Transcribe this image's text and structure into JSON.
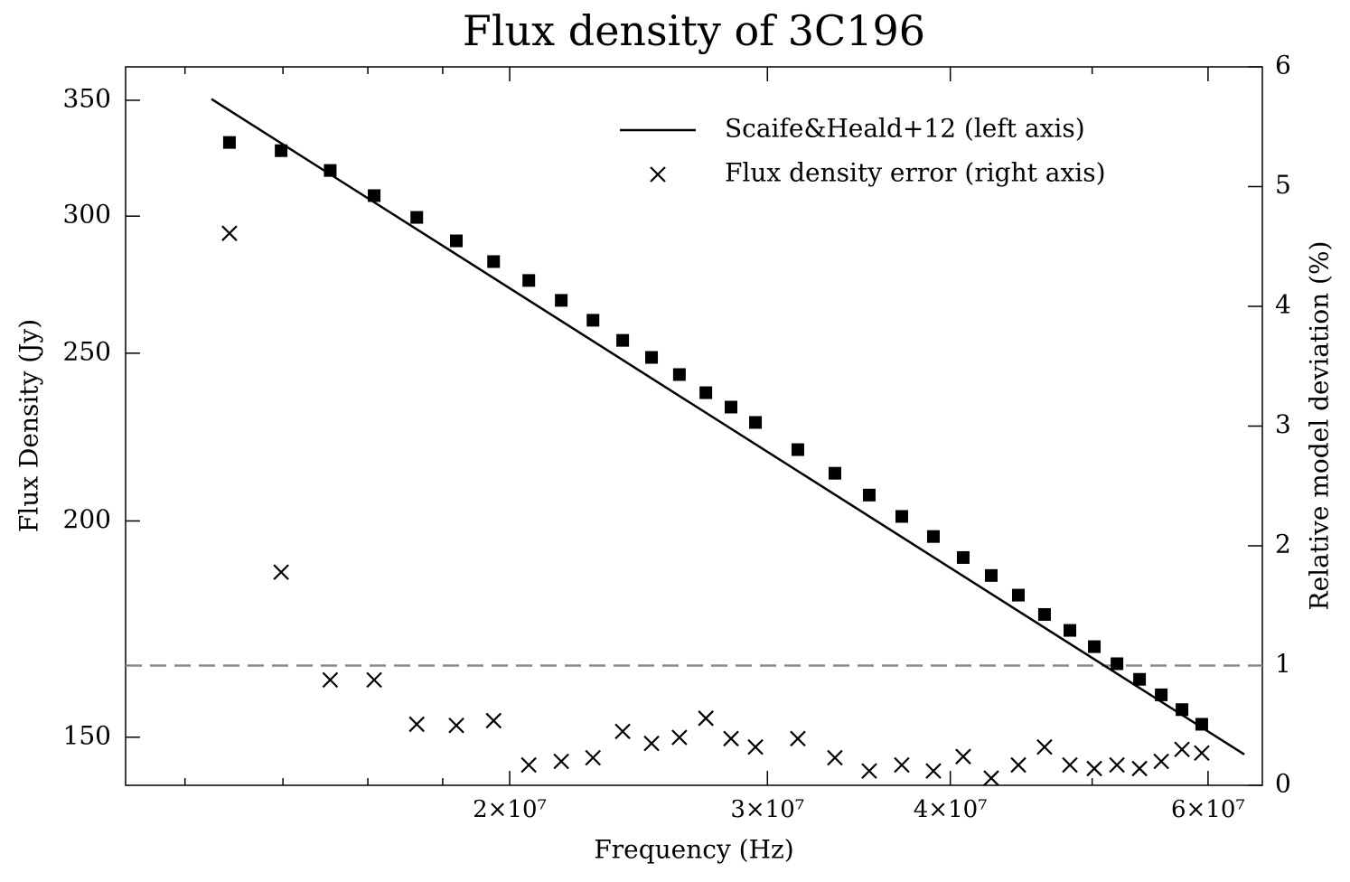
{
  "chart_data": {
    "type": "line",
    "title": "Flux density of 3C196",
    "xlabel": "Frequency (Hz)",
    "ylabel": "Flux Density (Jy)",
    "y2label": "Relative model deviation (%)",
    "xscale": "log",
    "yscale": "log",
    "xlim": [
      10930000,
      65350000
    ],
    "ylim": [
      140.7,
      365.9
    ],
    "y2lim": [
      0,
      6
    ],
    "xticks": [
      {
        "value": 20000000,
        "label": "2×10⁷"
      },
      {
        "value": 30000000,
        "label": "3×10⁷"
      },
      {
        "value": 40000000,
        "label": "4×10⁷"
      },
      {
        "value": 60000000,
        "label": "6×10⁷"
      }
    ],
    "xminorticks": [
      12000000,
      14000000,
      16000000,
      18000000,
      50000000
    ],
    "yticks": [
      150,
      200,
      250,
      300,
      350
    ],
    "y2ticks": [
      0,
      1,
      2,
      3,
      4,
      5,
      6
    ],
    "hline": {
      "value": 1,
      "axis": "y2",
      "color": "#888888"
    },
    "legend": "upper right",
    "series": [
      {
        "name": "Scaife&Heald+12 (left axis)",
        "marker": "line",
        "color": "#000000",
        "x": [
          12510000,
          63520000
        ],
        "values": [
          350.6,
          146.6
        ]
      },
      {
        "marker": "square",
        "color": "#000000",
        "x": [
          12870000,
          13960000,
          15080000,
          16160000,
          17280000,
          18390000,
          19500000,
          20610000,
          21690000,
          22800000,
          23890000,
          25000000,
          26120000,
          27230000,
          28330000,
          29440000,
          31470000,
          33360000,
          35210000,
          37060000,
          38950000,
          40820000,
          42660000,
          44520000,
          46390000,
          48280000,
          50170000,
          51990000,
          53870000,
          55740000,
          57590000,
          59410000
        ],
        "values": [
          330.9,
          327.3,
          318.8,
          308.3,
          299.5,
          290.3,
          282.4,
          275.4,
          268.2,
          261.2,
          254.3,
          248.6,
          243.0,
          237.2,
          232.7,
          228.0,
          219.9,
          213.1,
          207.0,
          201.2,
          195.9,
          190.5,
          186.0,
          181.2,
          176.6,
          172.9,
          169.2,
          165.4,
          162.0,
          158.7,
          155.6,
          152.6
        ]
      },
      {
        "name": "Flux density error (right axis)",
        "marker": "x",
        "axis": "y2",
        "color": "#000000",
        "x": [
          12870000,
          13960000,
          15080000,
          16160000,
          17280000,
          18390000,
          19500000,
          20610000,
          21690000,
          22800000,
          23890000,
          25000000,
          26120000,
          27230000,
          28330000,
          29440000,
          31470000,
          33360000,
          35210000,
          37060000,
          38950000,
          40820000,
          42660000,
          44520000,
          46390000,
          48280000,
          50170000,
          51990000,
          53870000,
          55740000,
          57590000,
          59410000
        ],
        "values": [
          4.61,
          1.78,
          0.88,
          0.88,
          0.51,
          0.5,
          0.54,
          0.17,
          0.2,
          0.23,
          0.45,
          0.35,
          0.4,
          0.56,
          0.39,
          0.32,
          0.39,
          0.23,
          0.12,
          0.17,
          0.12,
          0.24,
          0.06,
          0.17,
          0.32,
          0.17,
          0.14,
          0.17,
          0.14,
          0.2,
          0.3,
          0.27
        ]
      }
    ]
  }
}
